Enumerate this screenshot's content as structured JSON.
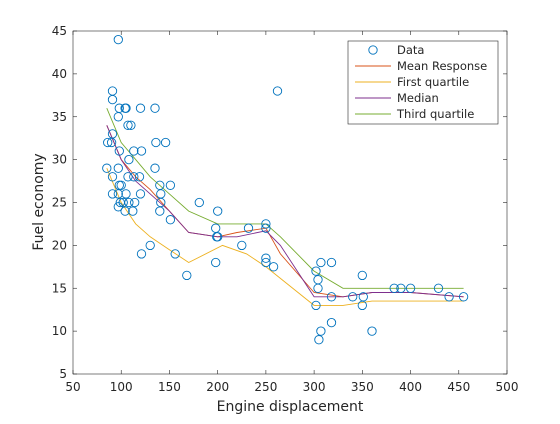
{
  "chart_data": {
    "type": "scatter",
    "xlabel": "Engine displacement",
    "ylabel": "Fuel economy",
    "xlim": [
      50,
      500
    ],
    "ylim": [
      5,
      45
    ],
    "x_ticks": [
      "50",
      "100",
      "150",
      "200",
      "250",
      "300",
      "350",
      "400",
      "450",
      "500"
    ],
    "y_ticks": [
      "5",
      "10",
      "15",
      "20",
      "25",
      "30",
      "35",
      "40",
      "45"
    ],
    "grid": false,
    "legend_position": "top-right",
    "scatter": {
      "name": "Data",
      "color": "#0072BD",
      "points": [
        [
          97,
          44
        ],
        [
          91,
          38
        ],
        [
          262,
          38
        ],
        [
          98,
          36
        ],
        [
          104,
          36
        ],
        [
          105,
          36
        ],
        [
          91,
          37
        ],
        [
          107,
          34
        ],
        [
          110,
          34
        ],
        [
          120,
          36
        ],
        [
          97,
          35
        ],
        [
          135,
          36
        ],
        [
          86,
          32
        ],
        [
          90,
          32
        ],
        [
          91,
          33
        ],
        [
          98,
          31
        ],
        [
          108,
          30
        ],
        [
          113,
          31
        ],
        [
          121,
          31
        ],
        [
          136,
          32
        ],
        [
          140,
          27
        ],
        [
          146,
          32
        ],
        [
          97,
          29
        ],
        [
          85,
          29
        ],
        [
          98,
          27
        ],
        [
          97,
          26
        ],
        [
          99,
          25
        ],
        [
          102,
          25
        ],
        [
          105,
          26
        ],
        [
          107,
          28
        ],
        [
          108,
          25
        ],
        [
          113,
          28
        ],
        [
          119,
          28
        ],
        [
          120,
          26
        ],
        [
          135,
          29
        ],
        [
          141,
          26
        ],
        [
          141,
          25
        ],
        [
          151,
          27
        ],
        [
          91,
          28
        ],
        [
          91,
          26
        ],
        [
          97,
          24.5
        ],
        [
          100,
          27
        ],
        [
          104,
          24
        ],
        [
          112,
          24
        ],
        [
          114,
          25
        ],
        [
          121,
          19
        ],
        [
          130,
          20
        ],
        [
          140,
          24
        ],
        [
          151,
          23
        ],
        [
          156,
          19
        ],
        [
          168,
          16.5
        ],
        [
          181,
          25
        ],
        [
          199,
          21
        ],
        [
          200,
          21
        ],
        [
          200,
          24
        ],
        [
          198,
          22
        ],
        [
          198,
          18
        ],
        [
          225,
          20
        ],
        [
          232,
          22
        ],
        [
          250,
          18
        ],
        [
          250,
          18.5
        ],
        [
          258,
          17.5
        ],
        [
          250,
          22
        ],
        [
          250,
          22.5
        ],
        [
          302,
          17
        ],
        [
          304,
          16
        ],
        [
          307,
          18
        ],
        [
          304,
          15
        ],
        [
          305,
          9
        ],
        [
          318,
          18
        ],
        [
          318,
          14
        ],
        [
          318,
          11
        ],
        [
          307,
          10
        ],
        [
          302,
          13
        ],
        [
          340,
          14
        ],
        [
          350,
          16.5
        ],
        [
          350,
          13
        ],
        [
          351,
          14
        ],
        [
          360,
          10
        ],
        [
          383,
          15
        ],
        [
          390,
          15
        ],
        [
          400,
          15
        ],
        [
          429,
          15
        ],
        [
          440,
          14
        ],
        [
          455,
          14
        ]
      ]
    },
    "series": [
      {
        "name": "Mean Response",
        "color": "#D95319",
        "x": [
          85,
          100,
          115,
          130,
          150,
          170,
          200,
          220,
          250,
          265,
          300,
          330,
          360,
          400,
          455
        ],
        "y": [
          34,
          30,
          28,
          26.5,
          24,
          21.5,
          21,
          21.5,
          22,
          19,
          14.5,
          14,
          14.5,
          14.5,
          14
        ]
      },
      {
        "name": "First quartile",
        "color": "#EDB120",
        "x": [
          85,
          100,
          115,
          130,
          150,
          170,
          205,
          230,
          250,
          300,
          330,
          360,
          400,
          455
        ],
        "y": [
          29,
          25,
          22.5,
          21,
          19.5,
          18,
          20,
          19,
          17.5,
          13,
          13,
          13.5,
          13.5,
          13.5
        ]
      },
      {
        "name": "Median",
        "color": "#7E2F8E",
        "x": [
          85,
          100,
          115,
          130,
          150,
          170,
          200,
          220,
          250,
          265,
          300,
          330,
          360,
          400,
          455
        ],
        "y": [
          34,
          30,
          27.5,
          26,
          24,
          21.5,
          21,
          21,
          21.7,
          20,
          14,
          14,
          14.5,
          14.5,
          14
        ]
      },
      {
        "name": "Third quartile",
        "color": "#77AC30",
        "x": [
          85,
          100,
          115,
          130,
          150,
          170,
          200,
          225,
          250,
          265,
          300,
          330,
          360,
          400,
          455
        ],
        "y": [
          36,
          32,
          30,
          28,
          26,
          24,
          22.5,
          22.5,
          22.5,
          21,
          17,
          15,
          15,
          15,
          15
        ]
      }
    ]
  }
}
